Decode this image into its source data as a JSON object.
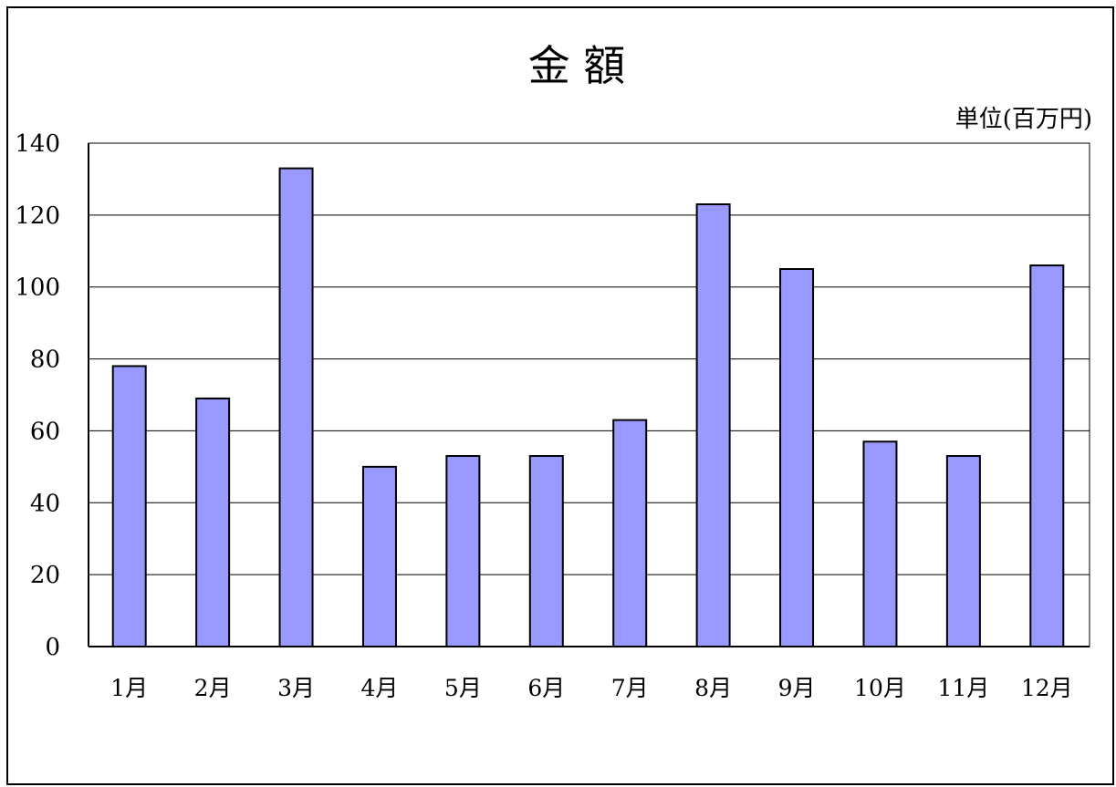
{
  "chart_data": {
    "type": "bar",
    "title": "金 額",
    "unit_label": "単位(百万円)",
    "categories": [
      "1月",
      "2月",
      "3月",
      "4月",
      "5月",
      "6月",
      "7月",
      "8月",
      "9月",
      "10月",
      "11月",
      "12月"
    ],
    "values": [
      78,
      69,
      133,
      50,
      53,
      53,
      63,
      123,
      105,
      57,
      53,
      106
    ],
    "ylim": [
      0,
      140
    ],
    "yticks": [
      "0",
      "20",
      "40",
      "60",
      "80",
      "100",
      "120",
      "140"
    ],
    "grid": true,
    "legend": "none",
    "bar_color": "#9999FF",
    "bar_edge_color": "#000000"
  }
}
